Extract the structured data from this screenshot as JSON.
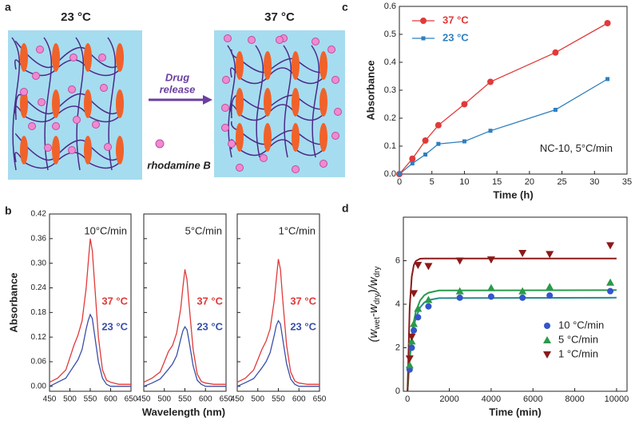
{
  "figure_a": {
    "panel": "a",
    "left_title": "23 °C",
    "right_title": "37 °C",
    "arrow_label": [
      "Drug",
      "release"
    ],
    "marker_label": "rhodamine B"
  },
  "chart_data": [
    {
      "type": "line",
      "panel": "c",
      "xlabel": "Time (h)",
      "ylabel": "Absorbance",
      "annotation": "NC-10, 5°C/min",
      "xlim": [
        0,
        35
      ],
      "ylim": [
        0,
        0.6
      ],
      "xticks": [
        0,
        5,
        10,
        15,
        20,
        25,
        30,
        35
      ],
      "yticks": [
        {
          "value": 0,
          "label": "0.0"
        },
        0.1,
        0.2,
        0.3,
        0.4,
        0.5,
        0.6
      ],
      "legend": "upper left",
      "x": [
        0,
        2,
        4,
        6,
        10,
        14,
        24,
        32
      ],
      "series": [
        {
          "name": "37 °C",
          "color": "#e03a3a",
          "marker": "circle",
          "values": [
            0,
            0.055,
            0.12,
            0.175,
            0.25,
            0.33,
            0.435,
            0.54
          ]
        },
        {
          "name": "23 °C",
          "color": "#2f7fbf",
          "marker": "square",
          "values": [
            0,
            0.038,
            0.07,
            0.108,
            0.117,
            0.155,
            0.23,
            0.34
          ]
        }
      ]
    },
    {
      "type": "line",
      "panel": "b",
      "ylabel": "Absorbance",
      "annotation": "10°C/min",
      "xlim": [
        450,
        650
      ],
      "ylim": [
        -0.012,
        0.42
      ],
      "xticks": [
        450,
        500,
        550,
        600,
        650
      ],
      "yticks": [
        {
          "value": 0,
          "label": "0.00"
        },
        0.06,
        0.12,
        0.18,
        0.24,
        {
          "value": 0.3,
          "label": "0.30"
        },
        0.36,
        0.42
      ],
      "x": [
        450,
        470,
        490,
        500,
        510,
        520,
        530,
        540,
        545,
        550,
        555,
        560,
        570,
        580,
        590,
        600,
        620,
        650
      ],
      "series": [
        {
          "name": "37 °C",
          "color": "#e03a3a",
          "values": [
            0.01,
            0.02,
            0.04,
            0.07,
            0.1,
            0.125,
            0.16,
            0.24,
            0.3,
            0.36,
            0.33,
            0.26,
            0.12,
            0.04,
            0.015,
            0.01,
            0.005,
            0.005
          ]
        },
        {
          "name": "23 °C",
          "color": "#3a4fa8",
          "values": [
            0,
            0.01,
            0.02,
            0.035,
            0.05,
            0.065,
            0.09,
            0.14,
            0.16,
            0.175,
            0.165,
            0.13,
            0.06,
            0.02,
            0.005,
            0,
            0,
            0
          ]
        }
      ]
    },
    {
      "type": "line",
      "panel": "b",
      "xlabel": "Wavelength (nm)",
      "annotation": "5°C/min",
      "xlim": [
        450,
        650
      ],
      "ylim": [
        -0.012,
        0.42
      ],
      "xticks": [
        450,
        500,
        550,
        600,
        650
      ],
      "yticks": [
        {
          "value": 0,
          "label": "0.00"
        },
        0.06,
        0.12,
        0.18,
        0.24,
        {
          "value": 0.3,
          "label": "0.30"
        },
        0.36,
        0.42
      ],
      "x": [
        450,
        470,
        490,
        500,
        510,
        520,
        530,
        540,
        545,
        550,
        555,
        560,
        570,
        580,
        590,
        600,
        620,
        650
      ],
      "series": [
        {
          "name": "37 °C",
          "color": "#e03a3a",
          "values": [
            0.01,
            0.02,
            0.035,
            0.06,
            0.085,
            0.1,
            0.13,
            0.19,
            0.24,
            0.285,
            0.26,
            0.2,
            0.09,
            0.03,
            0.012,
            0.008,
            0.005,
            0.005
          ]
        },
        {
          "name": "23 °C",
          "color": "#3a4fa8",
          "values": [
            0,
            0.008,
            0.018,
            0.03,
            0.042,
            0.055,
            0.075,
            0.115,
            0.135,
            0.145,
            0.138,
            0.11,
            0.05,
            0.015,
            0.005,
            0,
            0,
            0
          ]
        }
      ]
    },
    {
      "type": "line",
      "panel": "b",
      "annotation": "1°C/min",
      "xlim": [
        450,
        650
      ],
      "ylim": [
        -0.012,
        0.42
      ],
      "xticks": [
        450,
        500,
        550,
        600,
        650
      ],
      "yticks": [
        {
          "value": 0,
          "label": "0.00"
        },
        0.06,
        0.12,
        0.18,
        0.24,
        {
          "value": 0.3,
          "label": "0.30"
        },
        0.36,
        0.42
      ],
      "x": [
        450,
        470,
        490,
        500,
        510,
        520,
        530,
        540,
        545,
        550,
        555,
        560,
        570,
        580,
        590,
        600,
        620,
        650
      ],
      "series": [
        {
          "name": "37 °C",
          "color": "#e03a3a",
          "values": [
            0.01,
            0.02,
            0.04,
            0.065,
            0.09,
            0.11,
            0.14,
            0.21,
            0.26,
            0.31,
            0.285,
            0.22,
            0.1,
            0.035,
            0.013,
            0.008,
            0.005,
            0.005
          ]
        },
        {
          "name": "23 °C",
          "color": "#3a4fa8",
          "values": [
            0,
            0.009,
            0.019,
            0.032,
            0.045,
            0.06,
            0.082,
            0.125,
            0.148,
            0.16,
            0.152,
            0.12,
            0.055,
            0.018,
            0.005,
            0,
            0,
            0
          ]
        }
      ]
    },
    {
      "type": "scatter",
      "panel": "d",
      "xlabel": "Time (min)",
      "ylabel_parts": [
        "(w",
        "wet",
        "-w",
        "dry",
        ")/w",
        "dry"
      ],
      "xlim": [
        -200,
        10500
      ],
      "ylim": [
        0,
        8
      ],
      "xticks": [
        0,
        2000,
        4000,
        6000,
        8000,
        10000
      ],
      "yticks": [
        0,
        2,
        4,
        6
      ],
      "legend": "lower right",
      "x": [
        100,
        200,
        300,
        500,
        1000,
        2500,
        4000,
        5500,
        6800,
        9700
      ],
      "fit_x": [
        0,
        100,
        200,
        300,
        400,
        600,
        800,
        1000,
        1500,
        10000
      ],
      "series": [
        {
          "name": "10 °C/min",
          "color": "#3355cc",
          "fit_color": "#2a8a8a",
          "marker": "circle",
          "values": [
            1.0,
            2.0,
            2.8,
            3.4,
            3.9,
            4.3,
            4.35,
            4.3,
            4.4,
            4.6
          ],
          "fit": [
            0,
            1.45,
            2.35,
            2.98,
            3.4,
            3.85,
            4.08,
            4.19,
            4.28,
            4.3
          ]
        },
        {
          "name": "5 °C/min",
          "color": "#2a9a4a",
          "fit_color": "#2a9a4a",
          "marker": "triangle",
          "values": [
            1.2,
            2.3,
            3.1,
            3.8,
            4.2,
            4.6,
            4.75,
            4.6,
            4.8,
            5.0
          ],
          "fit": [
            0,
            1.57,
            2.55,
            3.22,
            3.67,
            4.17,
            4.41,
            4.53,
            4.63,
            4.65
          ]
        },
        {
          "name": "1 °C/min",
          "color": "#8b1a1a",
          "fit_color": "#8b1a1a",
          "marker": "triangle-down",
          "values": [
            1.5,
            2.5,
            4.5,
            5.8,
            5.75,
            6.0,
            6.05,
            6.35,
            6.3,
            6.7
          ],
          "fit": [
            0,
            3.86,
            5.27,
            5.8,
            5.99,
            6.09,
            6.1,
            6.1,
            6.1,
            6.1
          ]
        }
      ]
    }
  ]
}
